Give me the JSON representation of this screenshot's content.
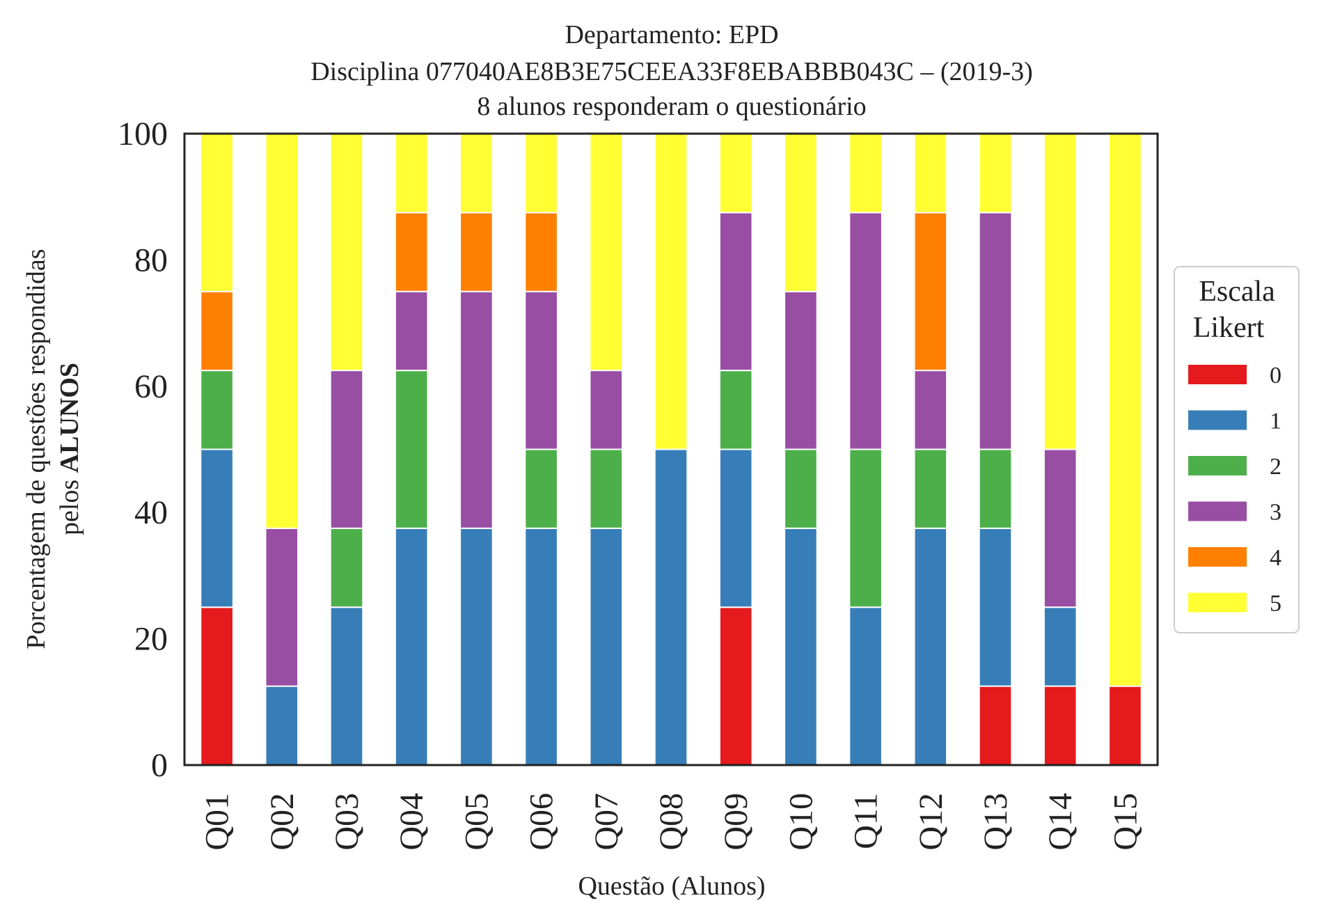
{
  "chart_data": {
    "type": "bar",
    "stacked": true,
    "title_lines": [
      "Departamento: EPD",
      "Disciplina 077040AE8B3E75CEEA33F8EBABBB043C – (2019-3)",
      "8 alunos responderam o questionário"
    ],
    "xlabel": "Questão (Alunos)",
    "ylabel_line1": "Porcentagem de questões respondidas",
    "ylabel_line2_prefix": "pelos ",
    "ylabel_line2_bold": "ALUNOS",
    "ylim": [
      0,
      100
    ],
    "yticks": [
      "0",
      "20",
      "40",
      "60",
      "80",
      "100"
    ],
    "grid": false,
    "legend": {
      "title_line1": "Escala",
      "title_line2": "Likert",
      "placement": "right"
    },
    "categories": [
      "Q01",
      "Q02",
      "Q03",
      "Q04",
      "Q05",
      "Q06",
      "Q07",
      "Q08",
      "Q09",
      "Q10",
      "Q11",
      "Q12",
      "Q13",
      "Q14",
      "Q15"
    ],
    "series": [
      {
        "name": "0",
        "color": "#e41a1c",
        "values": [
          25,
          0,
          0,
          0,
          0,
          0,
          0,
          0,
          25,
          0,
          0,
          0,
          12.5,
          12.5,
          12.5
        ]
      },
      {
        "name": "1",
        "color": "#377eb8",
        "values": [
          25,
          12.5,
          25,
          37.5,
          37.5,
          37.5,
          37.5,
          50,
          25,
          37.5,
          25,
          37.5,
          25,
          12.5,
          0
        ]
      },
      {
        "name": "2",
        "color": "#4daf4a",
        "values": [
          12.5,
          0,
          12.5,
          25,
          0,
          12.5,
          12.5,
          0,
          12.5,
          12.5,
          25,
          12.5,
          12.5,
          0,
          0
        ]
      },
      {
        "name": "3",
        "color": "#984ea3",
        "values": [
          0,
          25,
          25,
          12.5,
          37.5,
          25,
          12.5,
          0,
          25,
          25,
          37.5,
          12.5,
          37.5,
          25,
          0
        ]
      },
      {
        "name": "4",
        "color": "#ff7f00",
        "values": [
          12.5,
          0,
          0,
          12.5,
          12.5,
          12.5,
          0,
          0,
          0,
          0,
          0,
          25,
          0,
          0,
          0
        ]
      },
      {
        "name": "5",
        "color": "#ffff33",
        "values": [
          25,
          62.5,
          37.5,
          12.5,
          12.5,
          12.5,
          37.5,
          50,
          12.5,
          25,
          12.5,
          12.5,
          12.5,
          50,
          87.5
        ]
      }
    ]
  }
}
